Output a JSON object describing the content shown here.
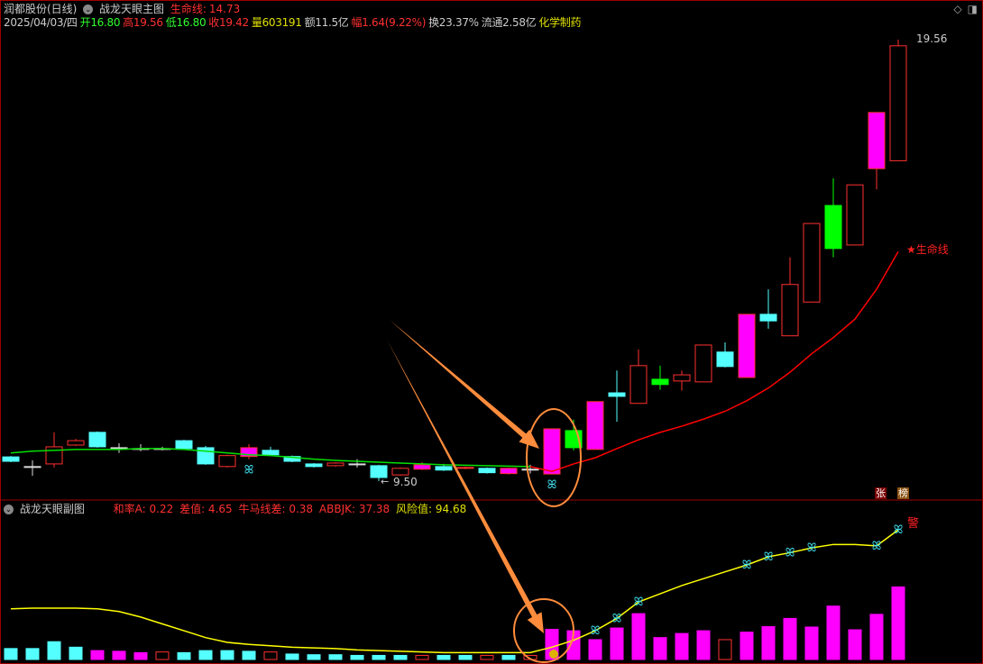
{
  "header": {
    "stock": "润都股份(日线)",
    "indicator": "战龙天眼主图",
    "lifeline_label": "生命线:",
    "lifeline_value": "14.73",
    "date": "2025/04/03/四",
    "open_l": "开",
    "open": "16.80",
    "high_l": "高",
    "high": "19.56",
    "low_l": "低",
    "low": "16.80",
    "close_l": "收",
    "close": "19.42",
    "vol_l": "量",
    "vol": "603191",
    "amt": "额11.5亿",
    "chg_l": "幅",
    "chg": "1.64(9.22%)",
    "turn": "换23.37%",
    "float": "流通2.58亿",
    "sector": "化学制药"
  },
  "subheader": {
    "title": "战龙天眼副图",
    "a": "和率A: 0.22",
    "b": "差值: 4.65",
    "c": "牛马线差: 0.38",
    "d": "ABBJK: 37.38",
    "risk": "风险值: 94.68"
  },
  "labels": {
    "max": "19.56",
    "min": "9.50",
    "lifeline": "★生命线",
    "zhang": "张",
    "bang": "榜",
    "jing": "警"
  },
  "icons": [
    "diamond-icon",
    "panel-toggle-icon"
  ],
  "colors": {
    "up": "#ff3030",
    "down": "#54ffff",
    "magenta": "#ff00ff",
    "green": "#00ff00",
    "lifeline_up": "#ff0000",
    "lifeline_down": "#00e000",
    "risk_line": "#ffff00",
    "arrow": "#ff8c3c"
  },
  "chart_data": [
    {
      "type": "candlestick",
      "ohlc_format": "[open,close,high,low,style]",
      "candles": [
        [
          10.05,
          9.95,
          10.07,
          9.93,
          "down"
        ],
        [
          9.83,
          9.83,
          9.97,
          9.62,
          "doji"
        ],
        [
          9.89,
          10.28,
          10.61,
          9.81,
          "up"
        ],
        [
          10.32,
          10.42,
          10.46,
          10.3,
          "up"
        ],
        [
          10.61,
          10.28,
          10.63,
          10.26,
          "down"
        ],
        [
          10.26,
          10.26,
          10.36,
          10.14,
          "doji"
        ],
        [
          10.24,
          10.24,
          10.34,
          10.18,
          "doji"
        ],
        [
          10.24,
          10.24,
          10.28,
          10.2,
          "doji"
        ],
        [
          10.42,
          10.24,
          10.44,
          10.22,
          "down"
        ],
        [
          10.26,
          9.89,
          10.3,
          9.87,
          "down"
        ],
        [
          9.83,
          10.08,
          10.1,
          9.81,
          "up"
        ],
        [
          10.06,
          10.26,
          10.34,
          10.0,
          "magenta"
        ],
        [
          10.2,
          10.1,
          10.28,
          10.08,
          "down"
        ],
        [
          10.06,
          9.95,
          10.08,
          9.93,
          "down"
        ],
        [
          9.89,
          9.83,
          9.91,
          9.81,
          "down"
        ],
        [
          9.85,
          9.91,
          9.93,
          9.83,
          "up"
        ],
        [
          9.89,
          9.89,
          10.0,
          9.81,
          "doji"
        ],
        [
          9.85,
          9.58,
          9.87,
          9.5,
          "down"
        ],
        [
          9.64,
          9.79,
          9.81,
          9.62,
          "up"
        ],
        [
          9.77,
          9.87,
          9.93,
          9.75,
          "magenta"
        ],
        [
          9.83,
          9.75,
          9.89,
          9.73,
          "down"
        ],
        [
          9.79,
          9.81,
          9.83,
          9.77,
          "up"
        ],
        [
          9.79,
          9.69,
          9.81,
          9.67,
          "down"
        ],
        [
          9.67,
          9.79,
          9.81,
          9.65,
          "magenta"
        ],
        [
          9.77,
          9.77,
          9.87,
          9.67,
          "doji"
        ],
        [
          9.66,
          10.69,
          10.69,
          9.66,
          "magenta"
        ],
        [
          10.65,
          10.26,
          10.9,
          10.2,
          "green"
        ],
        [
          10.22,
          11.31,
          11.31,
          10.22,
          "magenta"
        ],
        [
          11.51,
          11.43,
          12.02,
          10.85,
          "down"
        ],
        [
          11.27,
          12.13,
          12.5,
          11.27,
          "up"
        ],
        [
          11.82,
          11.7,
          12.13,
          11.58,
          "green"
        ],
        [
          11.78,
          11.92,
          12.02,
          11.56,
          "up"
        ],
        [
          11.76,
          12.6,
          12.6,
          11.76,
          "up"
        ],
        [
          12.44,
          12.11,
          12.66,
          12.09,
          "down"
        ],
        [
          11.86,
          13.3,
          13.3,
          11.86,
          "magenta"
        ],
        [
          13.3,
          13.15,
          13.87,
          12.97,
          "down"
        ],
        [
          12.81,
          13.98,
          14.6,
          12.81,
          "up"
        ],
        [
          13.58,
          15.37,
          15.37,
          13.58,
          "up"
        ],
        [
          15.78,
          14.8,
          16.4,
          14.6,
          "green"
        ],
        [
          14.88,
          16.25,
          16.25,
          14.88,
          "up"
        ],
        [
          16.62,
          17.9,
          17.9,
          16.15,
          "magenta"
        ],
        [
          16.8,
          19.42,
          19.56,
          16.8,
          "up"
        ]
      ],
      "lifeline": [
        10.14,
        10.18,
        10.2,
        10.22,
        10.22,
        10.22,
        10.24,
        10.24,
        10.22,
        10.18,
        10.14,
        10.1,
        10.08,
        10.04,
        10.0,
        9.97,
        9.95,
        9.93,
        9.91,
        9.89,
        9.87,
        9.86,
        9.85,
        9.84,
        9.83,
        9.72,
        9.89,
        10.03,
        10.24,
        10.44,
        10.61,
        10.75,
        10.91,
        11.09,
        11.33,
        11.62,
        11.98,
        12.4,
        12.77,
        13.19,
        13.87,
        14.73
      ],
      "lifeline_green_count": 25,
      "signals_main": [
        12,
        26
      ],
      "ylim": [
        9.5,
        19.56
      ]
    },
    {
      "type": "bar+line",
      "ylim": [
        0,
        100
      ],
      "bars": [
        8,
        8,
        13,
        9,
        6.5,
        6,
        5,
        5.5,
        5,
        6.5,
        6.5,
        6,
        5.5,
        4,
        3.5,
        3.5,
        3,
        3,
        3,
        3,
        3,
        3,
        3,
        3,
        3,
        22,
        21,
        14.5,
        23,
        33.5,
        16,
        19,
        21,
        14.5,
        20,
        24,
        30,
        23.7,
        39,
        21.7,
        33,
        53
      ],
      "bar_styles": [
        "down",
        "down",
        "down",
        "down",
        "magenta",
        "magenta",
        "magenta",
        "hollow",
        "down",
        "down",
        "down",
        "down",
        "hollow",
        "down",
        "down",
        "down",
        "down",
        "down",
        "down",
        "hollow",
        "down",
        "down",
        "hollow",
        "down",
        "hollow",
        "magenta",
        "magenta",
        "magenta",
        "magenta",
        "magenta",
        "magenta",
        "magenta",
        "magenta",
        "hollow",
        "magenta",
        "magenta",
        "magenta",
        "magenta",
        "magenta",
        "magenta",
        "magenta",
        "magenta"
      ],
      "risk": [
        37,
        37.5,
        37.5,
        37.5,
        37,
        35,
        31,
        26,
        21,
        16,
        12.5,
        11,
        10,
        9,
        8.5,
        8,
        7,
        6.5,
        6,
        5.5,
        5,
        5,
        5,
        5,
        5,
        9,
        14,
        21,
        30,
        42,
        48,
        54,
        59,
        64,
        69,
        75,
        78,
        81.5,
        84,
        84,
        83,
        94.68
      ],
      "signals": [
        28,
        29,
        30,
        35,
        36,
        37,
        38,
        41,
        42
      ],
      "coin_signal": 26
    }
  ]
}
